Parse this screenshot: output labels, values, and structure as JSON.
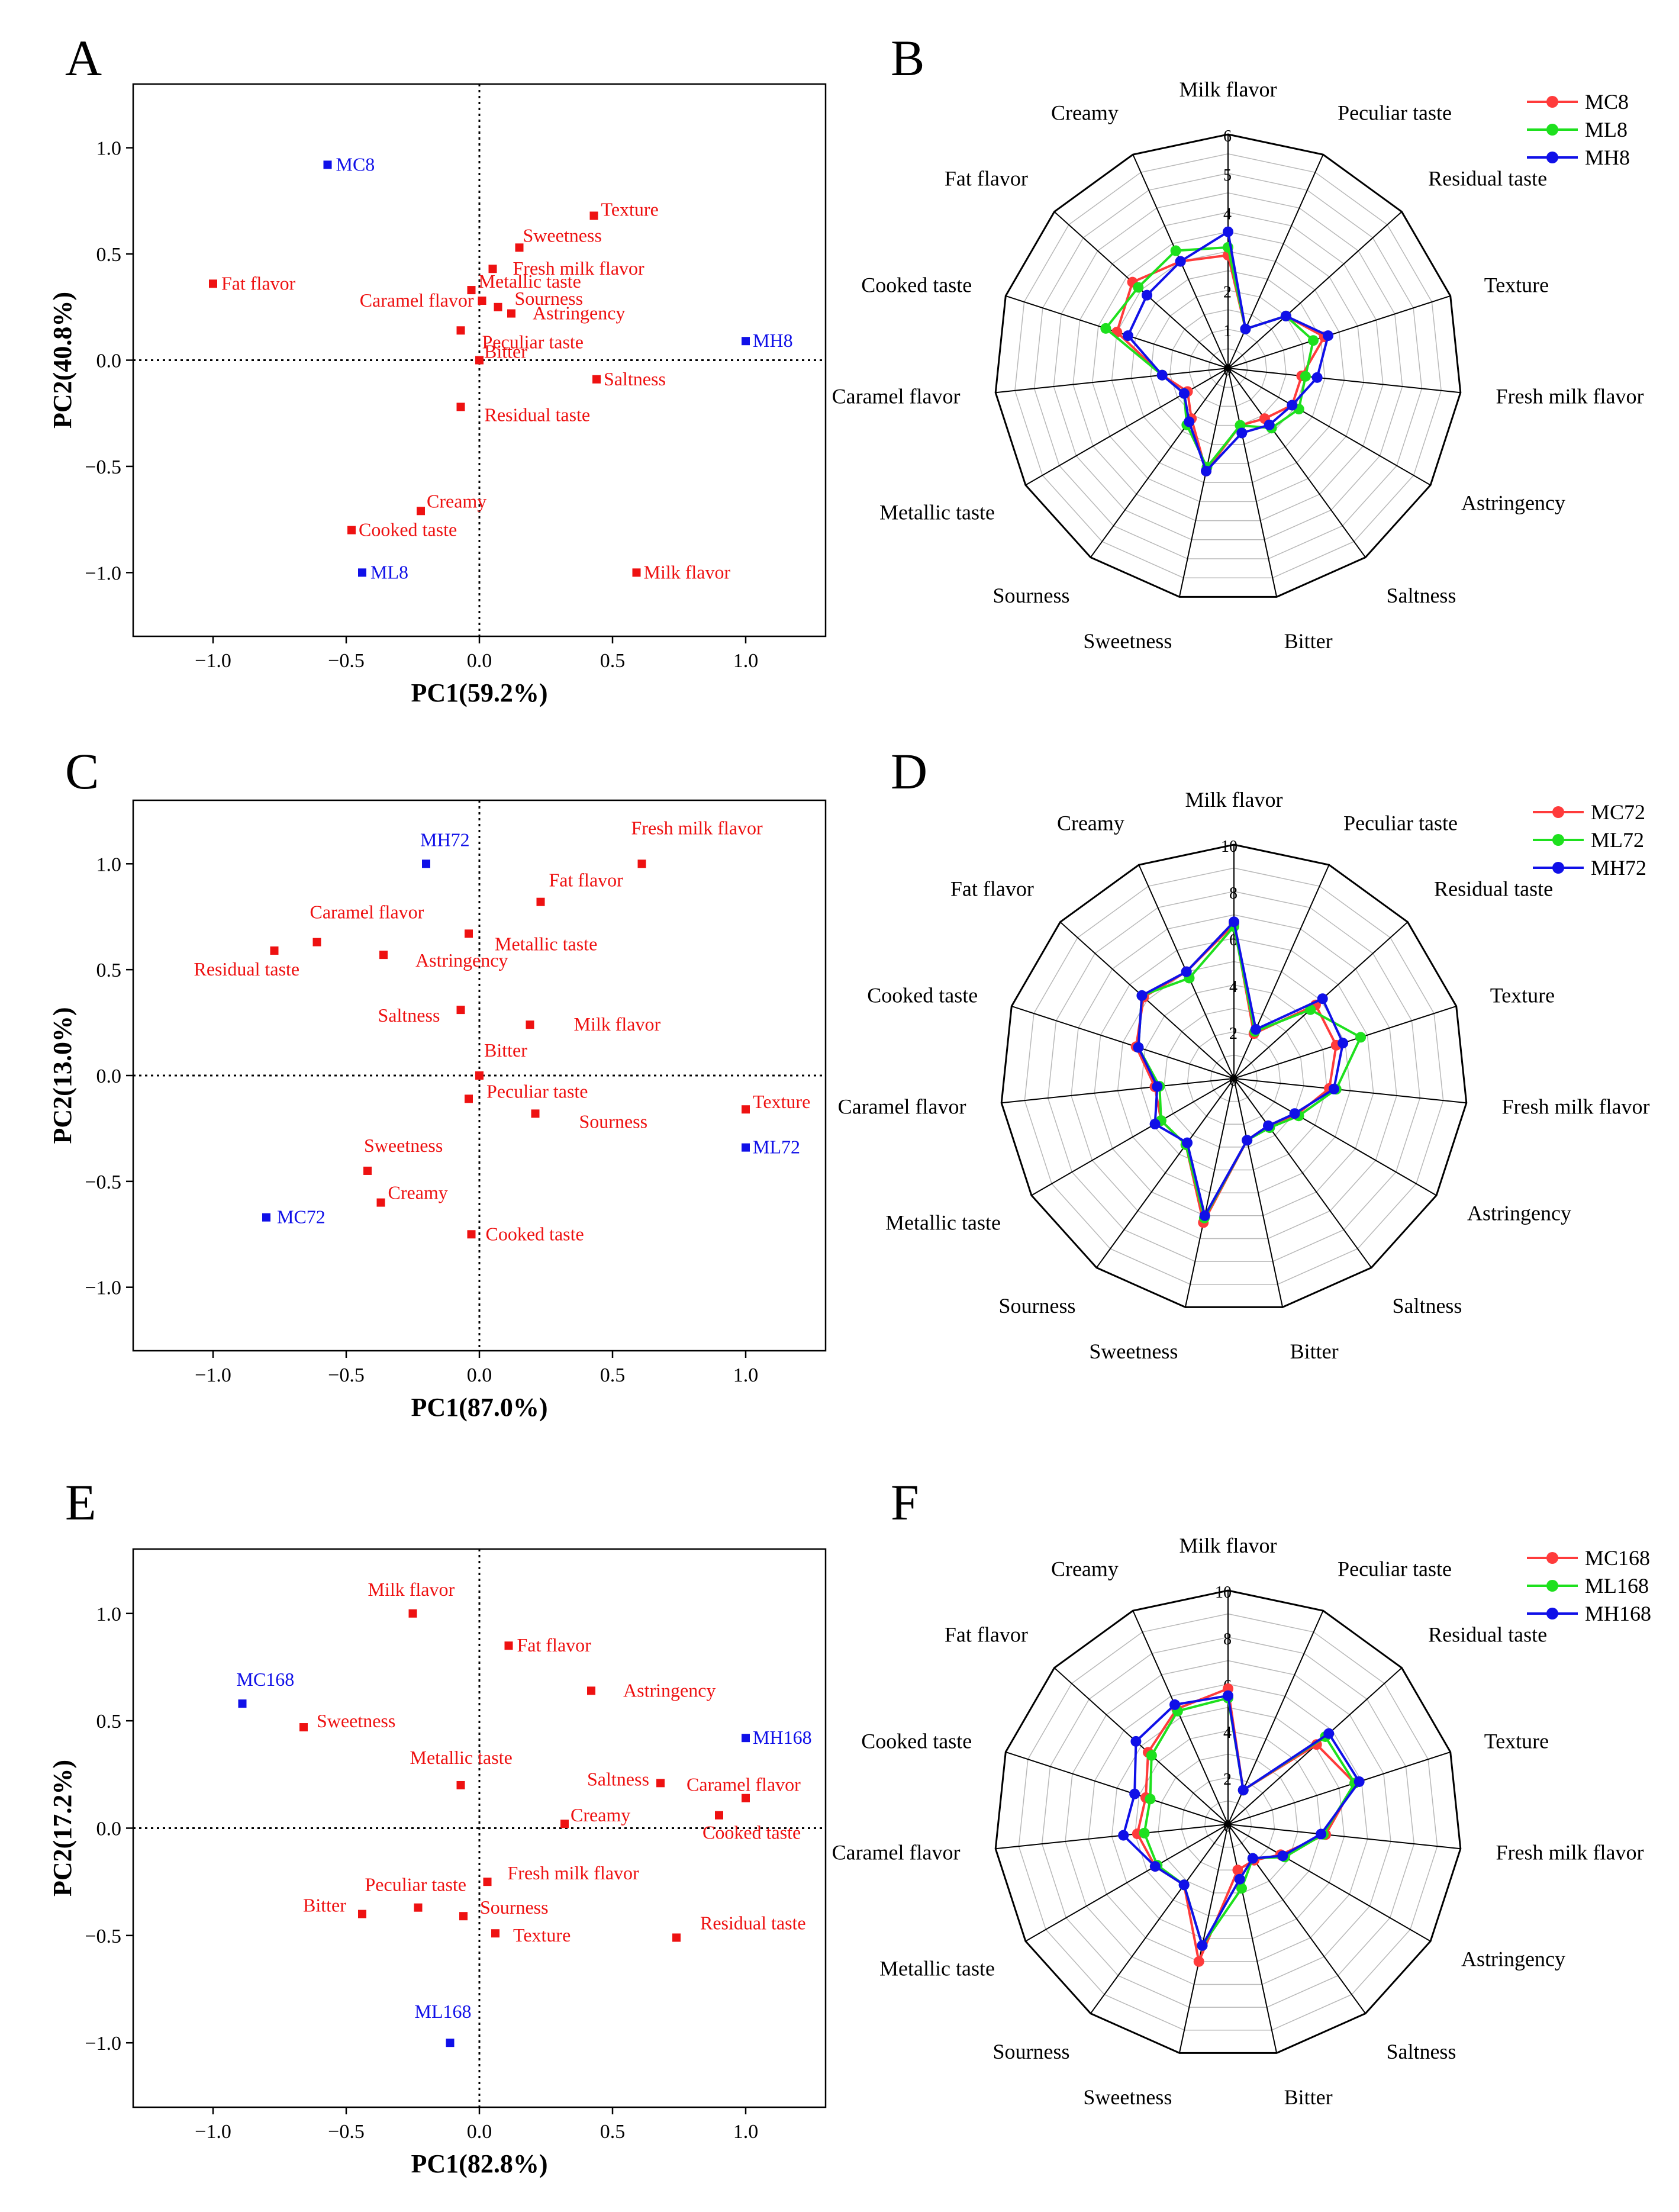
{
  "chart_data": [
    {
      "panel": "A",
      "type": "scatter",
      "xlabel": "PC1(59.2%)",
      "ylabel": "PC2(40.8%)",
      "xlim": [
        -1.3,
        1.3
      ],
      "ylim": [
        -1.3,
        1.3
      ],
      "xticks": [
        "−1.0",
        "−0.5",
        "0.0",
        "0.5",
        "1.0"
      ],
      "yticks": [
        "1.0",
        "0.5",
        "0.0",
        "−0.5",
        "−1.0"
      ],
      "xtick_values": [
        -1.0,
        -0.5,
        0.0,
        0.5,
        1.0
      ],
      "ytick_values": [
        1.0,
        0.5,
        0.0,
        -0.5,
        -1.0
      ],
      "samples": [
        {
          "label": "MC8",
          "x": -0.57,
          "y": 0.92
        },
        {
          "label": "MH8",
          "x": 1.0,
          "y": 0.09
        },
        {
          "label": "ML8",
          "x": -0.44,
          "y": -1.0
        }
      ],
      "attributes": [
        {
          "label": "Fat flavor",
          "x": -1.0,
          "y": 0.36
        },
        {
          "label": "Texture",
          "x": 0.43,
          "y": 0.68
        },
        {
          "label": "Sweetness",
          "x": 0.15,
          "y": 0.53
        },
        {
          "label": "Fresh milk flavor",
          "x": 0.05,
          "y": 0.43
        },
        {
          "label": "Metallic taste",
          "x": -0.03,
          "y": 0.33
        },
        {
          "label": "Caramel flavor",
          "x": 0.01,
          "y": 0.28
        },
        {
          "label": "Sourness",
          "x": 0.07,
          "y": 0.25
        },
        {
          "label": "Astringency",
          "x": 0.12,
          "y": 0.22
        },
        {
          "label": "Peculiar taste",
          "x": -0.07,
          "y": 0.14
        },
        {
          "label": "Bitter",
          "x": 0.0,
          "y": 0.0
        },
        {
          "label": "Saltness",
          "x": 0.44,
          "y": -0.09
        },
        {
          "label": "Residual taste",
          "x": -0.07,
          "y": -0.22
        },
        {
          "label": "Creamy",
          "x": -0.22,
          "y": -0.71
        },
        {
          "label": "Cooked taste",
          "x": -0.48,
          "y": -0.8
        },
        {
          "label": "Milk flavor",
          "x": 0.59,
          "y": -1.0
        }
      ]
    },
    {
      "panel": "B",
      "type": "radar",
      "axes": [
        "Milk flavor",
        "Peculiar taste",
        "Residual taste",
        "Texture",
        "Fresh milk flavor",
        "Astringency",
        "Saltness",
        "Bitter",
        "Sweetness",
        "Sourness",
        "Metallic taste",
        "Caramel flavor",
        "Cooked taste",
        "Fat flavor",
        "Creamy"
      ],
      "rmax": 6,
      "ticks": [
        "0",
        "1",
        "2",
        "3",
        "4",
        "5",
        "6"
      ],
      "tick_values": [
        0,
        1,
        2,
        3,
        4,
        5,
        6
      ],
      "series": [
        {
          "name": "MC8",
          "color": "#ff3b3b",
          "values": [
            2.9,
            1.1,
            2.0,
            2.6,
            1.9,
            1.9,
            1.6,
            1.5,
            2.7,
            1.6,
            1.2,
            1.7,
            3.0,
            3.3,
            3.0
          ]
        },
        {
          "name": "ML8",
          "color": "#1ee01e",
          "values": [
            3.1,
            1.1,
            2.0,
            2.3,
            2.0,
            2.1,
            1.9,
            1.5,
            2.6,
            1.8,
            1.3,
            1.7,
            3.3,
            3.1,
            3.3
          ]
        },
        {
          "name": "MH8",
          "color": "#1010e8",
          "values": [
            3.5,
            1.1,
            2.0,
            2.7,
            2.3,
            1.9,
            1.8,
            1.7,
            2.7,
            1.7,
            1.3,
            1.7,
            2.7,
            2.8,
            3.0
          ]
        }
      ]
    },
    {
      "panel": "C",
      "type": "scatter",
      "xlabel": "PC1(87.0%)",
      "ylabel": "PC2(13.0%)",
      "xlim": [
        -1.3,
        1.3
      ],
      "ylim": [
        -1.3,
        1.3
      ],
      "xticks": [
        "−1.0",
        "−0.5",
        "0.0",
        "0.5",
        "1.0"
      ],
      "yticks": [
        "1.0",
        "0.5",
        "0.0",
        "−0.5",
        "−1.0"
      ],
      "xtick_values": [
        -1.0,
        -0.5,
        0.0,
        0.5,
        1.0
      ],
      "ytick_values": [
        1.0,
        0.5,
        0.0,
        -0.5,
        -1.0
      ],
      "samples": [
        {
          "label": "MH72",
          "x": -0.2,
          "y": 1.0
        },
        {
          "label": "ML72",
          "x": 1.0,
          "y": -0.34
        },
        {
          "label": "MC72",
          "x": -0.8,
          "y": -0.67
        }
      ],
      "attributes": [
        {
          "label": "Fresh milk flavor",
          "x": 0.61,
          "y": 1.0
        },
        {
          "label": "Fat flavor",
          "x": 0.23,
          "y": 0.82
        },
        {
          "label": "Metallic taste",
          "x": -0.04,
          "y": 0.67
        },
        {
          "label": "Caramel flavor",
          "x": -0.61,
          "y": 0.63
        },
        {
          "label": "Residual taste",
          "x": -0.77,
          "y": 0.59
        },
        {
          "label": "Astringency",
          "x": -0.36,
          "y": 0.57
        },
        {
          "label": "Saltness",
          "x": -0.07,
          "y": 0.31
        },
        {
          "label": "Milk flavor",
          "x": 0.19,
          "y": 0.24
        },
        {
          "label": "Bitter",
          "x": 0.0,
          "y": 0.0
        },
        {
          "label": "Peculiar taste",
          "x": -0.04,
          "y": -0.11
        },
        {
          "label": "Texture",
          "x": 1.0,
          "y": -0.16
        },
        {
          "label": "Sourness",
          "x": 0.21,
          "y": -0.18
        },
        {
          "label": "Sweetness",
          "x": -0.42,
          "y": -0.45
        },
        {
          "label": "Creamy",
          "x": -0.37,
          "y": -0.6
        },
        {
          "label": "Cooked taste",
          "x": -0.03,
          "y": -0.75
        }
      ]
    },
    {
      "panel": "D",
      "type": "radar",
      "axes": [
        "Milk flavor",
        "Peculiar taste",
        "Residual taste",
        "Texture",
        "Fresh milk flavor",
        "Astringency",
        "Saltness",
        "Bitter",
        "Sweetness",
        "Sourness",
        "Metallic taste",
        "Caramel flavor",
        "Cooked taste",
        "Fat flavor",
        "Creamy"
      ],
      "rmax": 10,
      "ticks": [
        "0",
        "2",
        "4",
        "6",
        "8",
        "10"
      ],
      "tick_values": [
        0,
        2,
        4,
        6,
        8,
        10
      ],
      "series": [
        {
          "name": "MC72",
          "color": "#ff3b3b",
          "values": [
            6.6,
            2.1,
            4.7,
            4.6,
            4.1,
            3.1,
            2.5,
            2.7,
            6.3,
            3.5,
            3.6,
            3.4,
            4.4,
            5.2,
            5.0
          ]
        },
        {
          "name": "ML72",
          "color": "#1ee01e",
          "values": [
            6.5,
            2.2,
            4.4,
            5.7,
            4.4,
            3.2,
            2.6,
            2.7,
            6.1,
            3.5,
            3.6,
            3.2,
            4.3,
            5.3,
            4.7
          ]
        },
        {
          "name": "MH72",
          "color": "#1010e8",
          "values": [
            6.7,
            2.3,
            5.1,
            4.9,
            4.3,
            3.0,
            2.5,
            2.7,
            6.0,
            3.4,
            3.9,
            3.3,
            4.3,
            5.3,
            5.0
          ]
        }
      ]
    },
    {
      "panel": "E",
      "type": "scatter",
      "xlabel": "PC1(82.8%)",
      "ylabel": "PC2(17.2%)",
      "xlim": [
        -1.3,
        1.3
      ],
      "ylim": [
        -1.3,
        1.3
      ],
      "xticks": [
        "−1.0",
        "−0.5",
        "0.0",
        "0.5",
        "1.0"
      ],
      "yticks": [
        "1.0",
        "0.5",
        "0.0",
        "−0.5",
        "−1.0"
      ],
      "xtick_values": [
        -1.0,
        -0.5,
        0.0,
        0.5,
        1.0
      ],
      "ytick_values": [
        1.0,
        0.5,
        0.0,
        -0.5,
        -1.0
      ],
      "samples": [
        {
          "label": "MC168",
          "x": -0.89,
          "y": 0.58
        },
        {
          "label": "MH168",
          "x": 1.0,
          "y": 0.42
        },
        {
          "label": "ML168",
          "x": -0.11,
          "y": -1.0
        }
      ],
      "attributes": [
        {
          "label": "Milk flavor",
          "x": -0.25,
          "y": 1.0
        },
        {
          "label": "Fat flavor",
          "x": 0.11,
          "y": 0.85
        },
        {
          "label": "Astringency",
          "x": 0.42,
          "y": 0.64
        },
        {
          "label": "Sweetness",
          "x": -0.66,
          "y": 0.47
        },
        {
          "label": "Metallic taste",
          "x": -0.07,
          "y": 0.2
        },
        {
          "label": "Saltness",
          "x": 0.68,
          "y": 0.21
        },
        {
          "label": "Caramel flavor",
          "x": 1.0,
          "y": 0.14
        },
        {
          "label": "Creamy",
          "x": 0.32,
          "y": 0.02
        },
        {
          "label": "Cooked taste",
          "x": 0.9,
          "y": 0.06
        },
        {
          "label": "Fresh milk flavor",
          "x": 0.03,
          "y": -0.25
        },
        {
          "label": "Peculiar taste",
          "x": -0.23,
          "y": -0.37
        },
        {
          "label": "Bitter",
          "x": -0.44,
          "y": -0.4
        },
        {
          "label": "Sourness",
          "x": -0.06,
          "y": -0.41
        },
        {
          "label": "Texture",
          "x": 0.06,
          "y": -0.49
        },
        {
          "label": "Residual taste",
          "x": 0.74,
          "y": -0.51
        }
      ]
    },
    {
      "panel": "F",
      "type": "radar",
      "axes": [
        "Milk flavor",
        "Peculiar taste",
        "Residual taste",
        "Texture",
        "Fresh milk flavor",
        "Astringency",
        "Saltness",
        "Bitter",
        "Sweetness",
        "Sourness",
        "Metallic taste",
        "Caramel flavor",
        "Cooked taste",
        "Fat flavor",
        "Creamy"
      ],
      "rmax": 10,
      "ticks": [
        "0",
        "2",
        "4",
        "6",
        "8",
        "10"
      ],
      "tick_values": [
        0,
        2,
        4,
        6,
        8,
        10
      ],
      "series": [
        {
          "name": "MC168",
          "color": "#ff3b3b",
          "values": [
            5.8,
            1.6,
            5.1,
            5.7,
            4.2,
            2.6,
            1.9,
            2.0,
            6.0,
            3.2,
            3.6,
            3.9,
            3.7,
            4.6,
            5.4
          ]
        },
        {
          "name": "ML168",
          "color": "#1ee01e",
          "values": [
            5.4,
            1.6,
            5.6,
            5.7,
            4.1,
            2.8,
            1.8,
            2.8,
            5.3,
            3.2,
            3.5,
            3.6,
            3.5,
            4.4,
            5.3
          ]
        },
        {
          "name": "MH168",
          "color": "#1010e8",
          "values": [
            5.5,
            1.6,
            5.8,
            5.9,
            4.0,
            2.7,
            1.8,
            2.4,
            5.3,
            3.2,
            3.6,
            4.5,
            4.2,
            5.3,
            5.6
          ]
        }
      ]
    }
  ]
}
